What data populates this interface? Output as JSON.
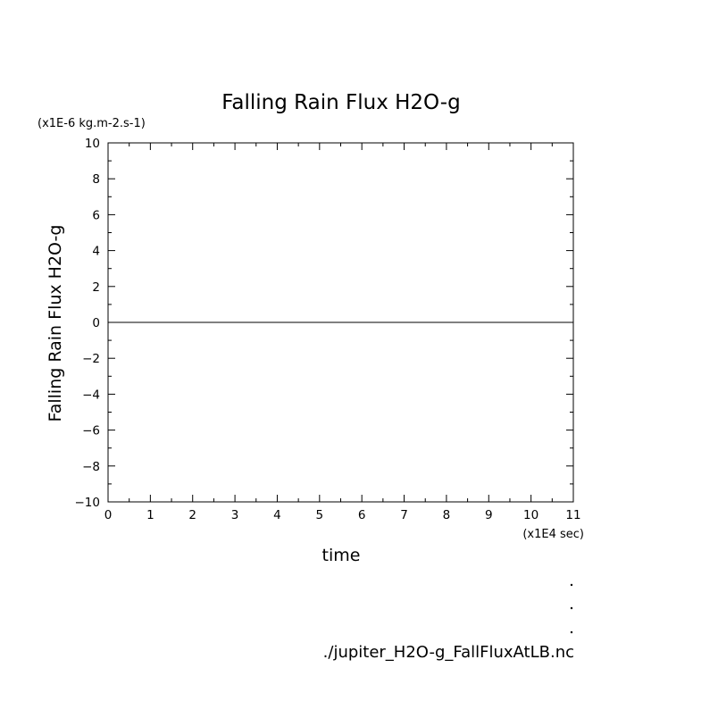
{
  "chart_data": {
    "type": "line",
    "title": "Falling Rain Flux H2O-g",
    "ylabel": "Falling Rain Flux H2O-g",
    "xlabel": "time",
    "y_units": "(x1E-6 kg.m-2.s-1)",
    "x_units": "(x1E4 sec)",
    "xlim": [
      0,
      11
    ],
    "ylim": [
      -10,
      10
    ],
    "x_ticks": [
      "0",
      "1",
      "2",
      "3",
      "4",
      "5",
      "6",
      "7",
      "8",
      "9",
      "10",
      "11"
    ],
    "y_ticks": [
      "-10",
      "-8",
      "-6",
      "-4",
      "-2",
      "0",
      "2",
      "4",
      "6",
      "8",
      "10"
    ],
    "series": [
      {
        "x": [
          0,
          11
        ],
        "y": [
          0,
          0
        ]
      }
    ],
    "grid": false
  },
  "footer": {
    "filename": "./jupiter_H2O-g_FallFluxAtLB.nc"
  }
}
